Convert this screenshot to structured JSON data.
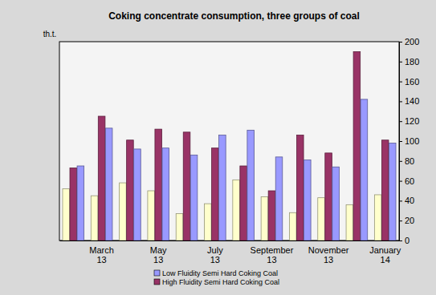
{
  "chart_data": {
    "type": "bar",
    "title": "Coking concentrate consumption, three groups of coal",
    "y_label": "th.t.",
    "categories": [
      null,
      "March 13",
      null,
      "May 13",
      null,
      "July 13",
      null,
      "September 13",
      null,
      "November 13",
      null,
      "January 14"
    ],
    "series": [
      {
        "color": "#ffffcc",
        "values": [
          52,
          45,
          58,
          50,
          27,
          37,
          61,
          44,
          28,
          43,
          36,
          46
        ]
      },
      {
        "name": "High Fluidity Semi Hard Coking Coal",
        "color": "#993366",
        "values": [
          73,
          125,
          101,
          112,
          109,
          93,
          75,
          50,
          106,
          88,
          190,
          101
        ]
      },
      {
        "name": "Low Fluidity Semi Hard Coking Coal",
        "color": "#9999ff",
        "values": [
          75,
          113,
          92,
          93,
          86,
          106,
          111,
          84,
          81,
          74,
          142,
          98
        ]
      }
    ],
    "ylim": [
      0,
      200
    ],
    "yticks": [
      0,
      20,
      40,
      60,
      80,
      100,
      120,
      140,
      160,
      180,
      200
    ],
    "grid": false,
    "legend": "bottom"
  }
}
